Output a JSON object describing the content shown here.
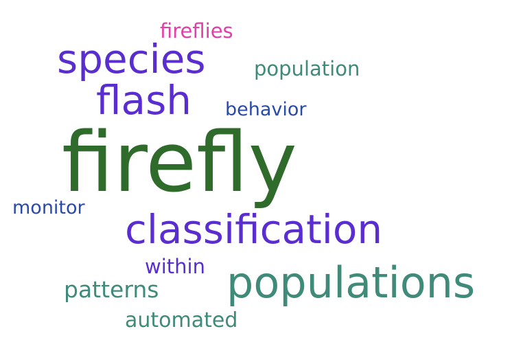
{
  "word_cloud": {
    "words": [
      {
        "text": "fireflies",
        "color": "#e040a8"
      },
      {
        "text": "species",
        "color": "#5a2dd0"
      },
      {
        "text": "population",
        "color": "#3f8a78"
      },
      {
        "text": "flash",
        "color": "#5a2dd0"
      },
      {
        "text": "behavior",
        "color": "#2a4aa8"
      },
      {
        "text": "firefly",
        "color": "#2f6b2a"
      },
      {
        "text": "monitor",
        "color": "#2a4aa8"
      },
      {
        "text": "classification",
        "color": "#5a2dd0"
      },
      {
        "text": "within",
        "color": "#5a2dd0"
      },
      {
        "text": "patterns",
        "color": "#3f8a78"
      },
      {
        "text": "populations",
        "color": "#3f8a78"
      },
      {
        "text": "automated",
        "color": "#3f8a78"
      }
    ]
  }
}
